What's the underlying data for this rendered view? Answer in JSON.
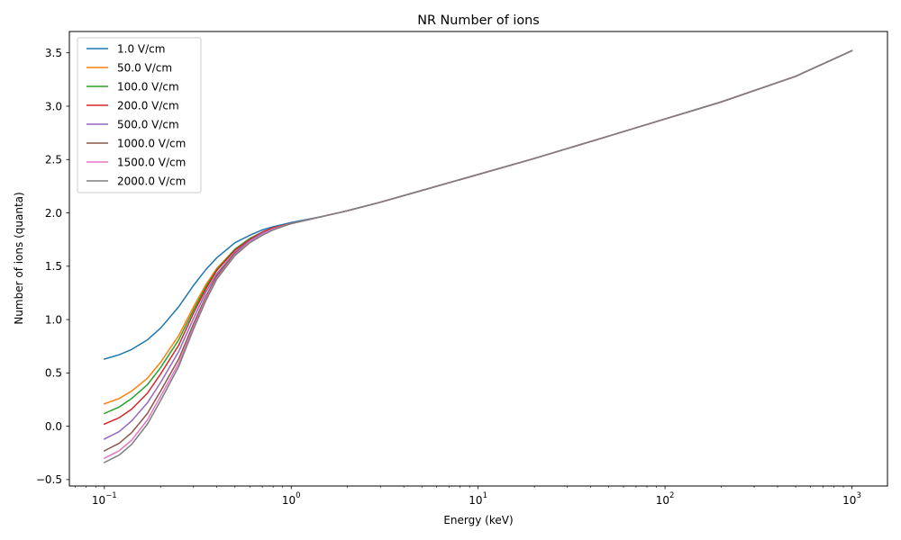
{
  "chart_data": {
    "type": "line",
    "title": "NR Number of ions",
    "xlabel": "Energy (keV)",
    "ylabel": "Number of ions (quanta)",
    "xscale": "log",
    "xlim": [
      0.065,
      1550
    ],
    "ylim": [
      -0.56,
      3.7
    ],
    "x_ticks": [
      {
        "value": 0.1,
        "base": "10",
        "exp": "−1"
      },
      {
        "value": 1,
        "base": "10",
        "exp": "0"
      },
      {
        "value": 10,
        "base": "10",
        "exp": "1"
      },
      {
        "value": 100,
        "base": "10",
        "exp": "2"
      },
      {
        "value": 1000,
        "base": "10",
        "exp": "3"
      }
    ],
    "y_ticks": [
      "−0.5",
      "0.0",
      "0.5",
      "1.0",
      "1.5",
      "2.0",
      "2.5",
      "3.0",
      "3.5"
    ],
    "y_tick_values": [
      -0.5,
      0.0,
      0.5,
      1.0,
      1.5,
      2.0,
      2.5,
      3.0,
      3.5
    ],
    "grid": false,
    "legend_position": "top-left",
    "x": [
      0.1,
      0.12,
      0.14,
      0.17,
      0.2,
      0.25,
      0.3,
      0.35,
      0.4,
      0.5,
      0.6,
      0.7,
      0.8,
      1.0,
      1.5,
      2,
      3,
      5,
      10,
      20,
      50,
      100,
      200,
      500,
      1000
    ],
    "series": [
      {
        "name": "1.0 V/cm",
        "color": "#1f77b4",
        "values": [
          0.63,
          0.67,
          0.72,
          0.81,
          0.92,
          1.12,
          1.32,
          1.47,
          1.58,
          1.72,
          1.79,
          1.84,
          1.87,
          1.91,
          1.97,
          2.02,
          2.1,
          2.21,
          2.36,
          2.51,
          2.72,
          2.88,
          3.04,
          3.28,
          3.52
        ]
      },
      {
        "name": "50.0 V/cm",
        "color": "#ff7f0e",
        "values": [
          0.21,
          0.26,
          0.33,
          0.45,
          0.6,
          0.85,
          1.12,
          1.33,
          1.48,
          1.66,
          1.76,
          1.82,
          1.86,
          1.9,
          1.97,
          2.02,
          2.1,
          2.21,
          2.36,
          2.51,
          2.72,
          2.88,
          3.04,
          3.28,
          3.52
        ]
      },
      {
        "name": "100.0 V/cm",
        "color": "#2ca02c",
        "values": [
          0.12,
          0.18,
          0.26,
          0.39,
          0.55,
          0.81,
          1.09,
          1.31,
          1.47,
          1.66,
          1.76,
          1.82,
          1.86,
          1.9,
          1.97,
          2.02,
          2.1,
          2.21,
          2.36,
          2.51,
          2.72,
          2.88,
          3.04,
          3.28,
          3.52
        ]
      },
      {
        "name": "200.0 V/cm",
        "color": "#d62728",
        "values": [
          0.02,
          0.08,
          0.16,
          0.31,
          0.49,
          0.76,
          1.06,
          1.29,
          1.46,
          1.65,
          1.75,
          1.82,
          1.86,
          1.9,
          1.97,
          2.02,
          2.1,
          2.21,
          2.36,
          2.51,
          2.72,
          2.88,
          3.04,
          3.28,
          3.52
        ]
      },
      {
        "name": "500.0 V/cm",
        "color": "#9467bd",
        "values": [
          -0.12,
          -0.05,
          0.05,
          0.22,
          0.41,
          0.7,
          1.01,
          1.26,
          1.43,
          1.63,
          1.74,
          1.81,
          1.85,
          1.9,
          1.97,
          2.02,
          2.1,
          2.21,
          2.36,
          2.51,
          2.72,
          2.88,
          3.04,
          3.28,
          3.52
        ]
      },
      {
        "name": "1000.0 V/cm",
        "color": "#8c564b",
        "values": [
          -0.23,
          -0.16,
          -0.06,
          0.12,
          0.33,
          0.63,
          0.96,
          1.22,
          1.41,
          1.62,
          1.73,
          1.8,
          1.85,
          1.9,
          1.97,
          2.02,
          2.1,
          2.21,
          2.36,
          2.51,
          2.72,
          2.88,
          3.04,
          3.28,
          3.52
        ]
      },
      {
        "name": "1500.0 V/cm",
        "color": "#e377c2",
        "values": [
          -0.3,
          -0.23,
          -0.13,
          0.06,
          0.28,
          0.59,
          0.93,
          1.2,
          1.39,
          1.61,
          1.73,
          1.8,
          1.85,
          1.9,
          1.97,
          2.02,
          2.1,
          2.21,
          2.36,
          2.51,
          2.72,
          2.88,
          3.04,
          3.28,
          3.52
        ]
      },
      {
        "name": "2000.0 V/cm",
        "color": "#7f7f7f",
        "values": [
          -0.34,
          -0.27,
          -0.17,
          0.02,
          0.24,
          0.56,
          0.91,
          1.18,
          1.38,
          1.6,
          1.72,
          1.79,
          1.84,
          1.9,
          1.97,
          2.02,
          2.1,
          2.21,
          2.36,
          2.51,
          2.72,
          2.88,
          3.04,
          3.28,
          3.52
        ]
      }
    ]
  }
}
